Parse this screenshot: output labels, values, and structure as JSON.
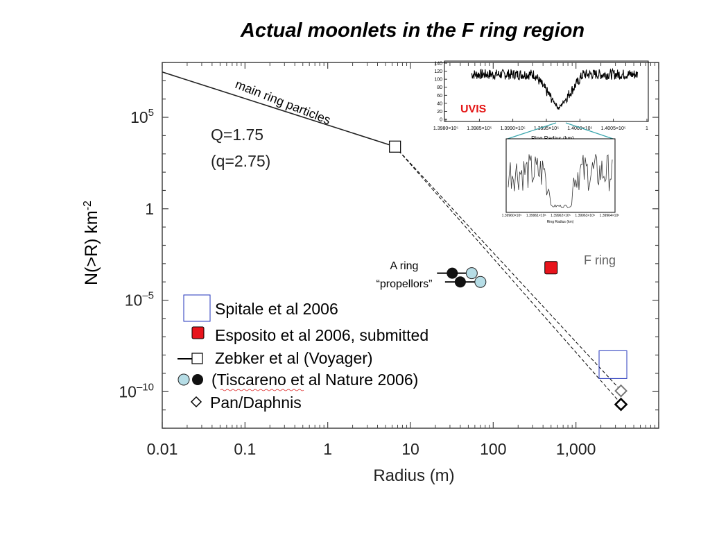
{
  "title": "Actual moonlets in the F ring region",
  "chart_data": {
    "type": "scatter",
    "x_scale": "log",
    "y_scale": "log",
    "xlabel": "Radius (m)",
    "ylabel": "N(>R) km-2",
    "ylabel_base": "N(>R) km",
    "ylabel_sup": "-2",
    "xlim": [
      0.01,
      10000
    ],
    "ylim": [
      1e-12,
      100000000.0
    ],
    "x_ticks": [
      {
        "v": 0.01,
        "label": "0.01"
      },
      {
        "v": 0.1,
        "label": "0.1"
      },
      {
        "v": 1,
        "label": "1"
      },
      {
        "v": 10,
        "label": "10"
      },
      {
        "v": 100,
        "label": "100"
      },
      {
        "v": 1000,
        "label": "1,000"
      }
    ],
    "y_ticks": [
      {
        "v": 100000.0,
        "base": "10",
        "sup": "5"
      },
      {
        "v": 1,
        "base": "1",
        "sup": ""
      },
      {
        "v": 1e-05,
        "base": "10",
        "sup": "–5"
      },
      {
        "v": 1e-10,
        "base": "10",
        "sup": "–10"
      }
    ],
    "power_law": {
      "label": "main ring particles",
      "from": [
        0.01,
        30000000.0
      ],
      "to": [
        6.5,
        2500.0
      ]
    },
    "slope_label_1": "Q=1.75",
    "slope_label_2": "(q=2.75)",
    "extrapolations": [
      {
        "from": [
          6.5,
          2500.0
        ],
        "to": [
          3600,
          1e-10
        ]
      },
      {
        "from": [
          6.5,
          2500.0
        ],
        "to": [
          3300,
          3e-11
        ]
      }
    ],
    "series": [
      {
        "name": "Spitale et al 2006",
        "marker": "open-square-blue",
        "points": [
          {
            "x": 2800,
            "y": 3e-09
          }
        ]
      },
      {
        "name": "Esposito et al 2006, submitted",
        "marker": "filled-square-red",
        "points": [
          {
            "x": 500,
            "y": 0.0006
          }
        ]
      },
      {
        "name": "Zebker et al (Voyager)",
        "marker": "open-square-black",
        "points": [
          {
            "x": 6.5,
            "y": 2500.0
          }
        ]
      },
      {
        "name": "(Tiscareno et al Nature 2006)",
        "marker": "circles",
        "points": [
          {
            "x": 32,
            "y": 0.0003,
            "kind": "filled"
          },
          {
            "x": 55,
            "y": 0.0003,
            "kind": "light"
          },
          {
            "x": 40,
            "y": 0.0001,
            "kind": "filled"
          },
          {
            "x": 70,
            "y": 0.0001,
            "kind": "light"
          }
        ]
      },
      {
        "name": "Pan/Daphnis",
        "marker": "open-diamond",
        "points": [
          {
            "x": 3500,
            "y": 1.1e-10,
            "kind": "gray"
          },
          {
            "x": 3500,
            "y": 2e-11,
            "kind": "black"
          }
        ]
      }
    ],
    "annotations": {
      "a_ring_line1": "A ring",
      "a_ring_line2": "“propellors”",
      "f_ring": "F ring"
    },
    "inset": {
      "label": "UVIS",
      "y_ticks": [
        "140",
        "120",
        "100",
        "80",
        "60",
        "40",
        "20",
        "0"
      ],
      "x_ticks": [
        "1.3980×10⁵",
        "1.3985×10⁵",
        "1.3990×10⁵",
        "1.3995×10⁵",
        "1.4000×10⁵",
        "1.4005×10⁵",
        "1"
      ],
      "xlabel": "Ring Radius (km)",
      "zoom_x_ticks": [
        "1.39960×10⁵",
        "1.39961×10⁵",
        "1.39962×10⁵",
        "1.39963×10⁵",
        "1.39964×10⁵"
      ],
      "zoom_xlabel": "Ring Radius (km)"
    }
  }
}
